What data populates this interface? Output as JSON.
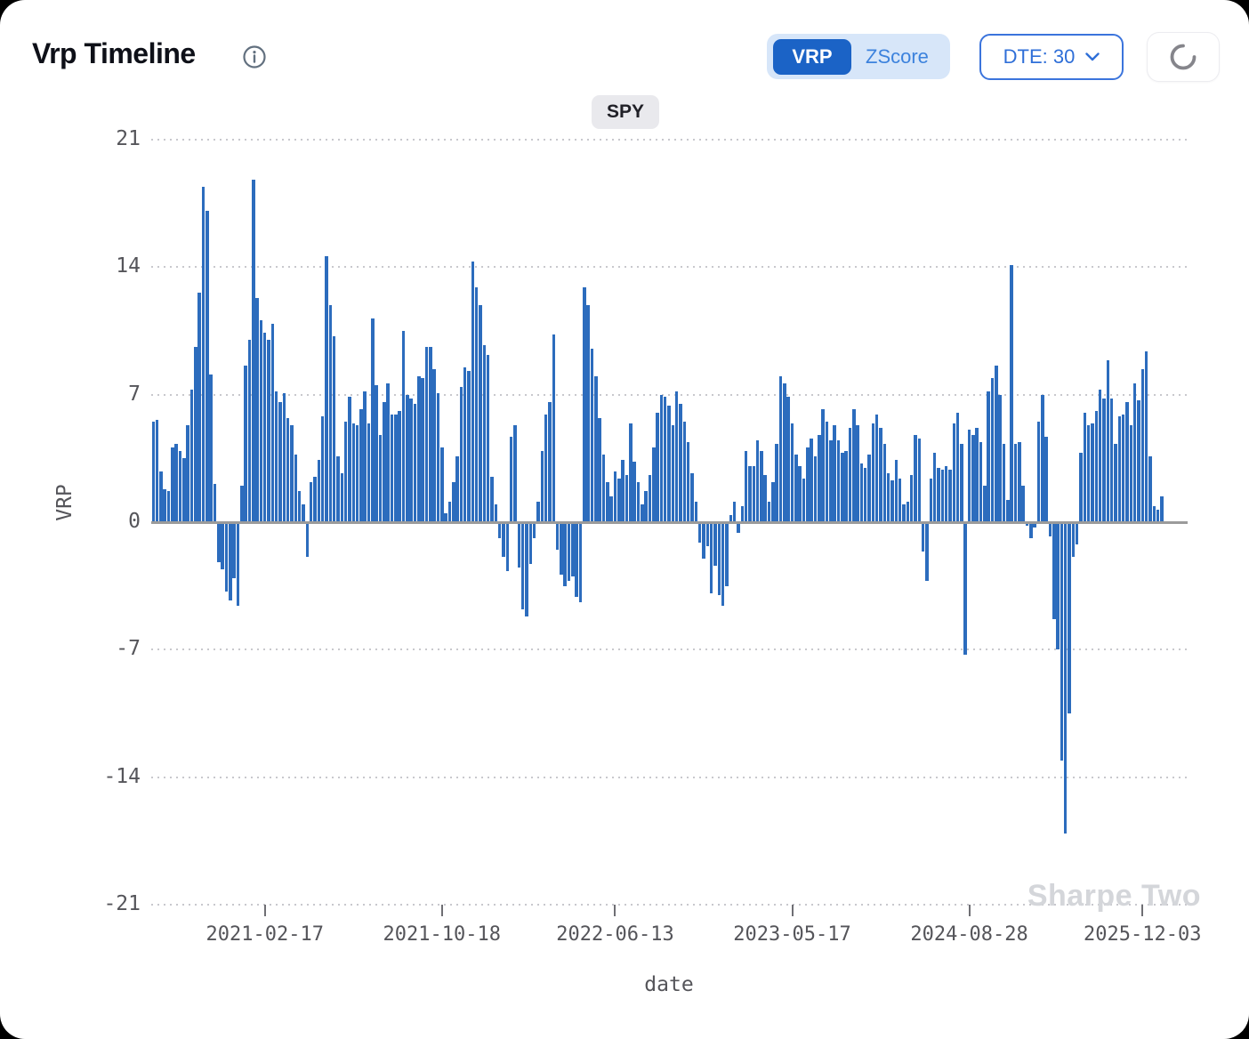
{
  "header": {
    "title": "Vrp Timeline",
    "icons": {
      "info": "info-icon",
      "chevron": "chevron-down-icon",
      "refresh": "refresh-spinner-icon"
    }
  },
  "controls": {
    "metric_toggle": {
      "options": [
        "VRP",
        "ZScore"
      ],
      "active": "VRP"
    },
    "dte_dropdown": {
      "label": "DTE: 30"
    },
    "refresh_button": {
      "label": ""
    }
  },
  "watermark": "Sharpe Two",
  "chart_data": {
    "type": "bar",
    "legend_badge": "SPY",
    "xlabel": "date",
    "ylabel": "VRP",
    "ylim": [
      -21,
      21
    ],
    "grid": "dotted-horizontal",
    "bar_color": "#2c6cbd",
    "zero_line_color": "#9b9b9b",
    "yticks": [
      21,
      14,
      7,
      0,
      -7,
      -14,
      -21
    ],
    "xticks": [
      {
        "index": 29,
        "label": "2021-02-17"
      },
      {
        "index": 75,
        "label": "2021-10-18"
      },
      {
        "index": 120,
        "label": "2022-06-13"
      },
      {
        "index": 166,
        "label": "2023-05-17"
      },
      {
        "index": 212,
        "label": "2024-08-28"
      },
      {
        "index": 257,
        "label": "2025-12-03"
      }
    ],
    "values": [
      5.5,
      5.6,
      2.8,
      1.8,
      1.7,
      4.1,
      4.3,
      3.9,
      3.5,
      5.3,
      7.3,
      9.6,
      12.6,
      18.4,
      17.1,
      8.1,
      2.1,
      -2.2,
      -2.6,
      -3.8,
      -4.3,
      -3.1,
      -4.6,
      2.0,
      8.6,
      10.0,
      18.8,
      12.3,
      11.1,
      10.4,
      10.0,
      10.9,
      7.2,
      6.6,
      7.1,
      5.7,
      5.3,
      3.7,
      1.7,
      1.0,
      -1.9,
      2.2,
      2.5,
      3.4,
      5.8,
      14.6,
      11.9,
      10.2,
      3.6,
      2.7,
      5.5,
      6.9,
      5.4,
      5.3,
      6.2,
      7.2,
      5.4,
      11.2,
      7.5,
      4.8,
      6.6,
      7.6,
      5.9,
      5.9,
      6.1,
      10.5,
      7.0,
      6.8,
      6.5,
      8.0,
      7.9,
      9.6,
      9.6,
      8.4,
      7.1,
      4.1,
      0.5,
      1.1,
      2.2,
      3.6,
      7.4,
      8.5,
      8.3,
      14.3,
      12.9,
      11.9,
      9.7,
      9.2,
      2.5,
      1.0,
      -0.9,
      -1.9,
      -2.7,
      4.7,
      5.3,
      -2.5,
      -4.8,
      -5.2,
      -2.3,
      -0.9,
      1.1,
      3.9,
      5.9,
      6.6,
      10.3,
      -1.5,
      -2.9,
      -3.5,
      -3.2,
      -3.0,
      -4.1,
      -4.4,
      12.9,
      11.9,
      9.5,
      8.0,
      5.7,
      3.7,
      2.2,
      1.4,
      2.8,
      2.4,
      3.4,
      2.6,
      5.4,
      3.3,
      2.2,
      1.0,
      1.7,
      2.6,
      4.1,
      6.0,
      7.0,
      6.9,
      6.4,
      5.3,
      7.2,
      6.5,
      5.5,
      4.4,
      2.7,
      1.1,
      -1.1,
      -2.0,
      -1.3,
      -3.9,
      -2.4,
      -4.0,
      -4.6,
      -3.5,
      0.4,
      1.1,
      -0.6,
      0.9,
      3.9,
      3.1,
      3.1,
      4.5,
      3.9,
      2.6,
      1.1,
      2.2,
      4.3,
      8.0,
      7.6,
      6.9,
      5.4,
      3.7,
      3.1,
      2.4,
      4.1,
      4.6,
      3.6,
      4.8,
      6.2,
      5.5,
      4.5,
      5.3,
      4.5,
      3.8,
      3.9,
      5.2,
      6.2,
      5.3,
      3.2,
      3.0,
      3.7,
      5.4,
      5.9,
      5.2,
      4.3,
      2.7,
      2.3,
      3.4,
      2.4,
      1.0,
      1.1,
      2.6,
      4.8,
      4.6,
      -1.6,
      -3.2,
      2.4,
      3.8,
      3.0,
      2.9,
      3.1,
      2.9,
      5.4,
      6.0,
      4.3,
      -7.3,
      5.1,
      4.8,
      5.2,
      4.4,
      2.0,
      7.2,
      7.9,
      8.6,
      7.0,
      4.3,
      1.2,
      14.1,
      4.3,
      4.4,
      2.0,
      -0.2,
      -0.9,
      -0.3,
      5.5,
      7.0,
      4.7,
      -0.8,
      -5.3,
      -7.0,
      -13.1,
      -17.1,
      -10.5,
      -1.9,
      -1.2,
      3.8,
      6.0,
      5.3,
      5.4,
      6.1,
      7.3,
      6.8,
      8.9,
      6.8,
      4.3,
      5.8,
      5.9,
      6.6,
      5.3,
      7.6,
      6.7,
      8.4,
      9.4,
      3.6,
      0.9,
      0.7,
      1.4
    ]
  }
}
